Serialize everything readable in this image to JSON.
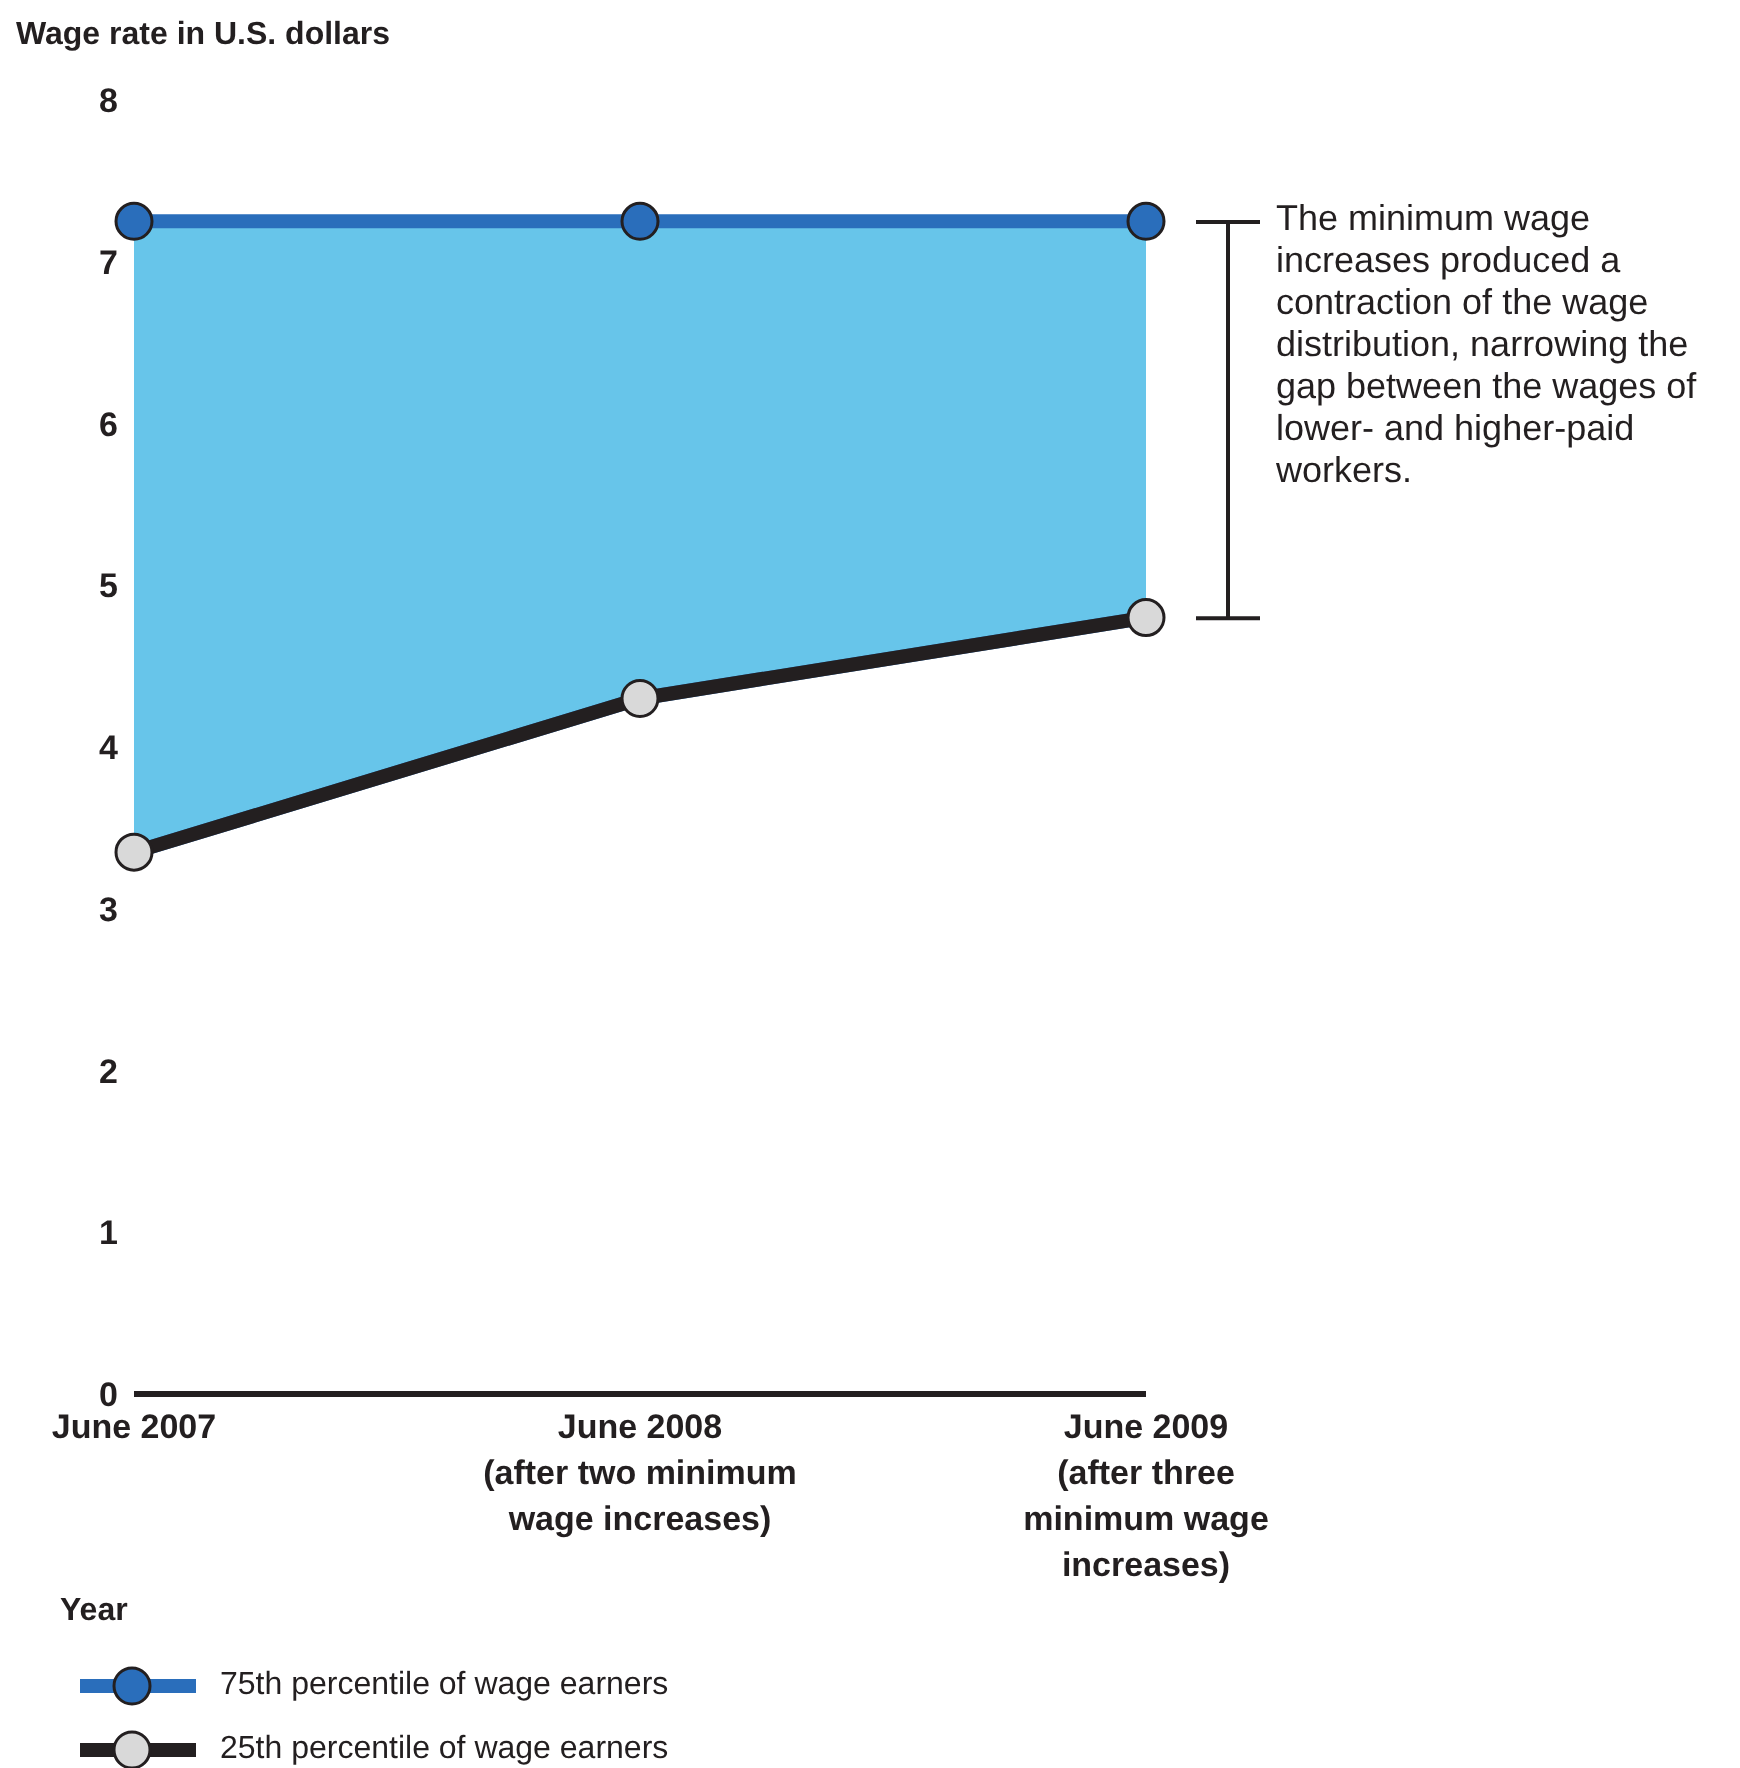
{
  "chart_data": {
    "type": "line",
    "ylabel": "Wage rate in U.S. dollars",
    "xlabel": "Year",
    "categories": [
      "June 2007",
      "June 2008 (after two minimum wage increases)",
      "June 2009 (after three minimum wage increases)"
    ],
    "series": [
      {
        "name": "75th percentile of wage earners",
        "type": "area",
        "color": "#2a6ebb",
        "values": [
          7.25,
          7.25,
          7.25
        ]
      },
      {
        "name": "25th percentile of wage earners",
        "color": "#231f20",
        "values": [
          3.35,
          4.3,
          4.8
        ]
      }
    ],
    "ylim": [
      0,
      8
    ],
    "yticks": [
      0,
      1,
      2,
      3,
      4,
      5,
      6,
      7,
      8
    ],
    "grid": false,
    "marker": "circle",
    "line_style": "solid",
    "legend": "bottom",
    "annotations": [
      "The minimum wage increases produced a contraction of the wage distribution, narrowing the gap between the wages of lower- and higher-paid workers."
    ]
  }
}
